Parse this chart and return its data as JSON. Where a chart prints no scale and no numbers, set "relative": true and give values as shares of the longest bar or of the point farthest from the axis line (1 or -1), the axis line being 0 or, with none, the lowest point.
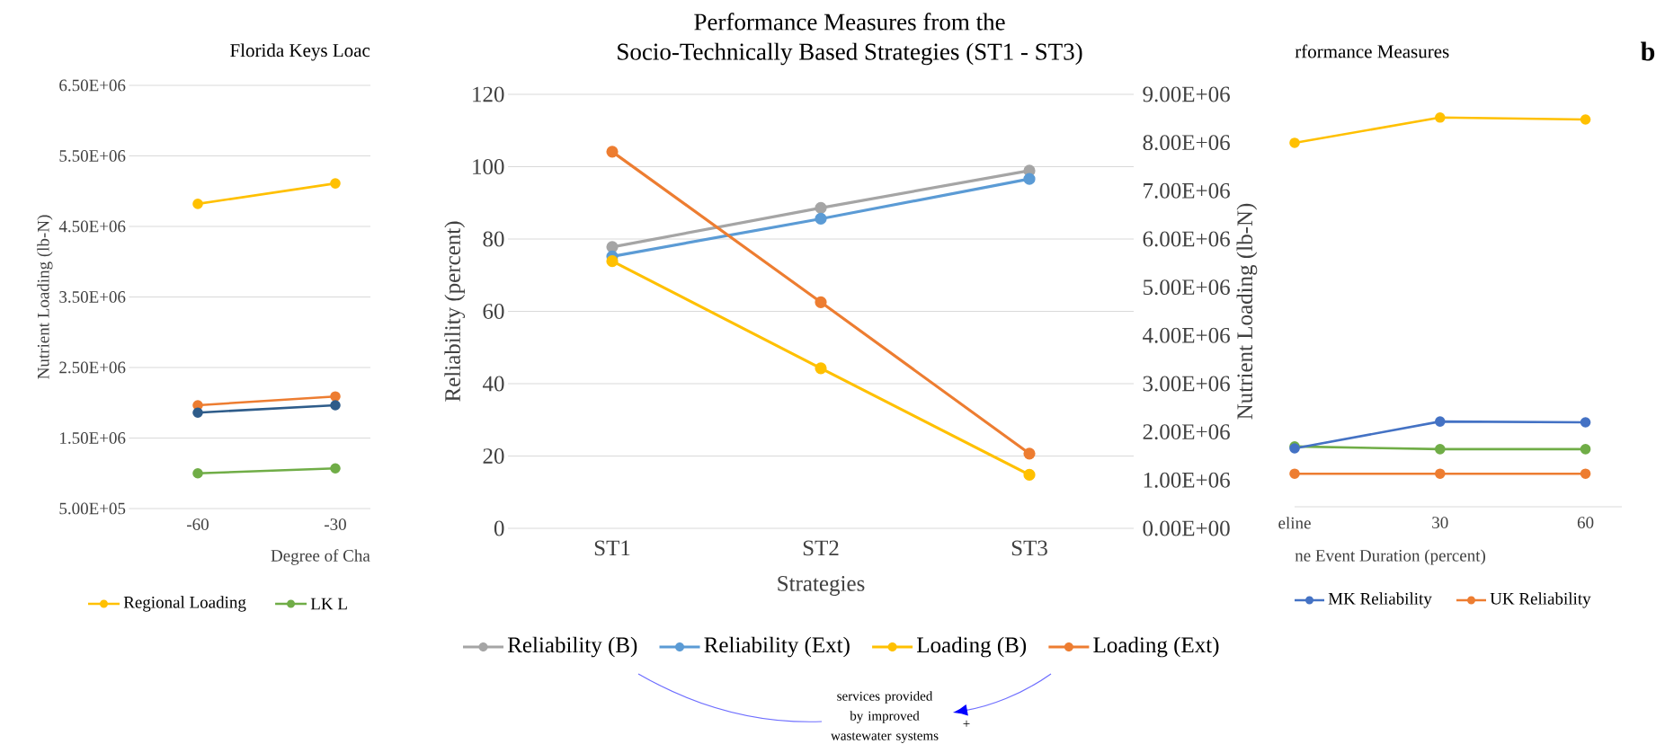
{
  "chart_data": [
    {
      "type": "line",
      "title": "Florida Keys Loac",
      "xlabel": "Degree of Cha",
      "ylabel": "Nutrient Loading (lb-N)",
      "categories": [
        "-60",
        "-30"
      ],
      "series": [
        {
          "name": "Regional Loading",
          "color": "#ffc000",
          "values": [
            4820000,
            5110000
          ]
        },
        {
          "name": "LK L",
          "color": "#70ad47",
          "values": [
            1000000,
            1070000
          ]
        },
        {
          "color": "#ed7d31",
          "values": [
            1965000,
            2090000
          ]
        },
        {
          "color": "#2e5c8a",
          "values": [
            1860000,
            1965000
          ]
        }
      ],
      "ylim": [
        500000,
        6500000
      ],
      "yticks": [
        {
          "value": 500000,
          "label": "5.00E+05"
        },
        {
          "value": 1500000,
          "label": "1.50E+06"
        },
        {
          "value": 2500000,
          "label": "2.50E+06"
        },
        {
          "value": 3500000,
          "label": "3.50E+06"
        },
        {
          "value": 4500000,
          "label": "4.50E+06"
        },
        {
          "value": 5500000,
          "label": "5.50E+06"
        },
        {
          "value": 6500000,
          "label": "6.50E+06"
        }
      ],
      "grid": "y",
      "legend": "bottom",
      "marker": "circle",
      "line_style": "solid"
    },
    {
      "type": "line",
      "title": "Performance Measures from the",
      "subtitle": "Socio-Technically Based Strategies (ST1 - ST3)",
      "xlabel": "Strategies",
      "ylabel": "Reliability (percent)",
      "y2label": "Nutrient Loading (lb-N)",
      "categories": [
        "ST1",
        "ST2",
        "ST3"
      ],
      "series": [
        {
          "name": "Reliability (B)",
          "color": "#a5a5a5",
          "values": [
            77.8,
            88.6,
            98.9
          ]
        },
        {
          "name": "Reliability (Ext)",
          "color": "#5b9bd5",
          "values": [
            75.2,
            85.6,
            96.6
          ]
        },
        {
          "name": "Loading (B)",
          "color": "#ffc000",
          "axis": "y2",
          "values": [
            5540000,
            3320000,
            1110000
          ]
        },
        {
          "name": "Loading (Ext)",
          "color": "#ed7d31",
          "axis": "y2",
          "values": [
            7810000,
            4690000,
            1550000
          ]
        }
      ],
      "ylim": [
        0,
        120
      ],
      "yticks": [
        0,
        20,
        40,
        60,
        80,
        100,
        120
      ],
      "y2lim": [
        0,
        9000000
      ],
      "y2ticks": [
        {
          "value": 0,
          "label": "0.00E+00"
        },
        {
          "value": 1000000,
          "label": "1.00E+06"
        },
        {
          "value": 2000000,
          "label": "2.00E+06"
        },
        {
          "value": 3000000,
          "label": "3.00E+06"
        },
        {
          "value": 4000000,
          "label": "4.00E+06"
        },
        {
          "value": 5000000,
          "label": "5.00E+06"
        },
        {
          "value": 6000000,
          "label": "6.00E+06"
        },
        {
          "value": 7000000,
          "label": "7.00E+06"
        },
        {
          "value": 8000000,
          "label": "8.00E+06"
        },
        {
          "value": 9000000,
          "label": "9.00E+06"
        }
      ],
      "annotations": [
        "services provided by improved wastewater systems",
        "+"
      ],
      "grid": "y",
      "legend": "bottom",
      "marker": "circle",
      "line_style": "solid"
    },
    {
      "type": "line",
      "relative": true,
      "title": "rformance Measures",
      "xlabel": "ne Event Duration (percent)",
      "categories": [
        "eline",
        "30",
        "60"
      ],
      "series": [
        {
          "color": "#ffc000",
          "values": [
            0.935,
            1,
            0.995
          ]
        },
        {
          "color": "#70ad47",
          "values": [
            0.155,
            0.148,
            0.148
          ]
        },
        {
          "name": "MK Reliability",
          "color": "#4472c4",
          "values": [
            0.15,
            0.219,
            0.217
          ]
        },
        {
          "name": "UK Reliability",
          "color": "#ed7d31",
          "values": [
            0.085,
            0.085,
            0.085
          ]
        }
      ],
      "annotations": [
        "b"
      ],
      "legend": "bottom",
      "marker": "circle",
      "line_style": "solid"
    }
  ]
}
